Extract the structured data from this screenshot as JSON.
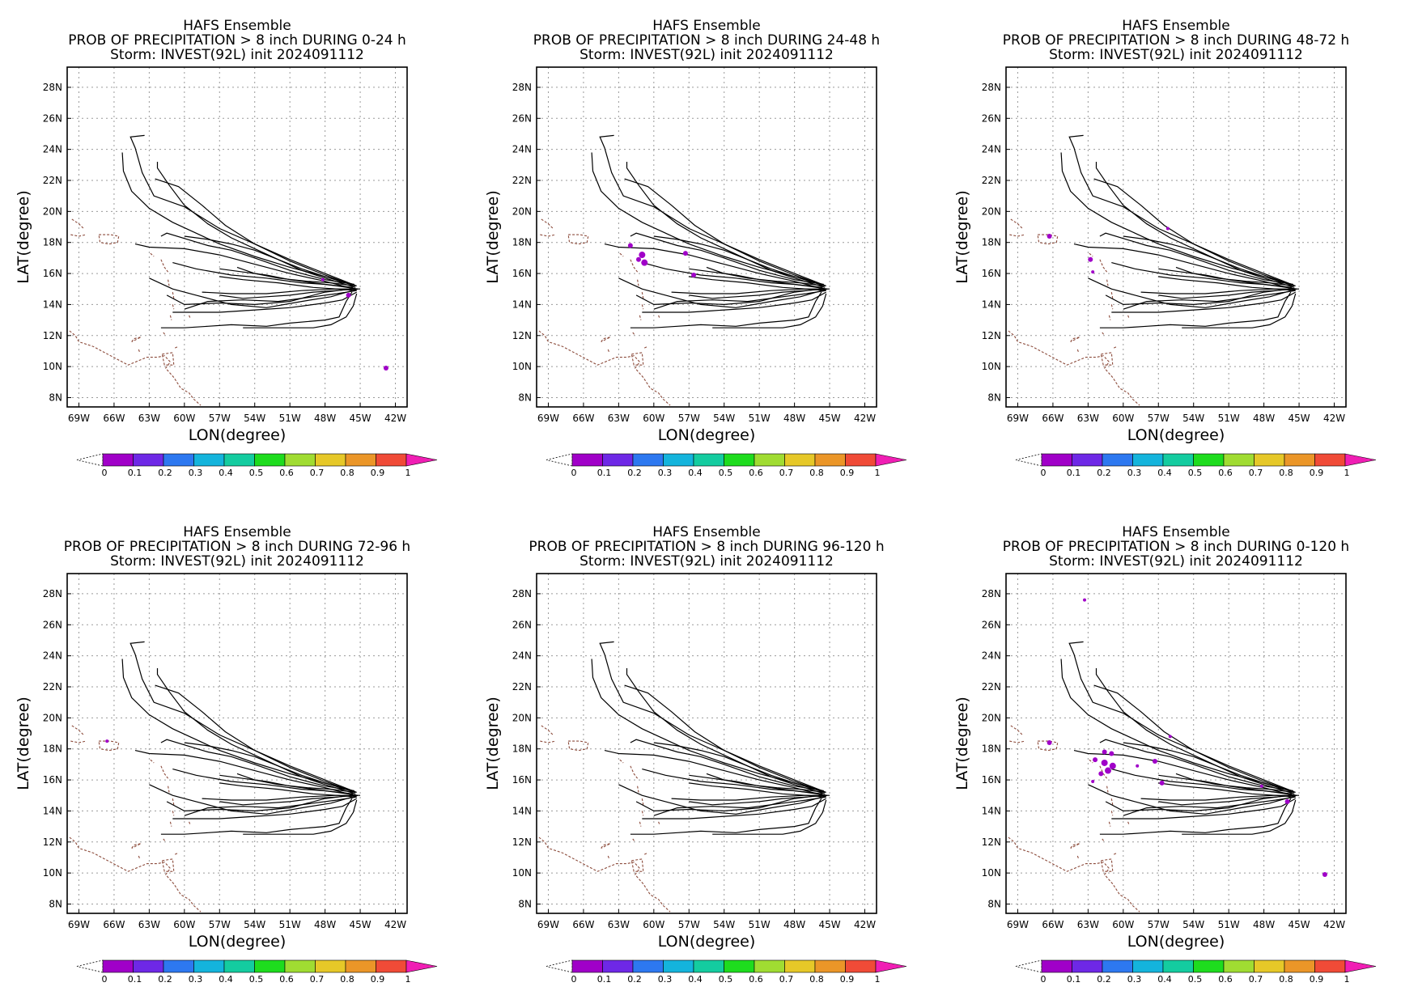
{
  "chart_data": {
    "type": "map",
    "xlabel": "LON(degree)",
    "ylabel": "LAT(degree)",
    "xlim": [
      -70,
      -41
    ],
    "ylim": [
      7.4,
      29.3
    ],
    "x_ticks": [
      -69,
      -66,
      -63,
      -60,
      -57,
      -54,
      -51,
      -48,
      -45,
      -42
    ],
    "x_tick_labels": [
      "69W",
      "66W",
      "63W",
      "60W",
      "57W",
      "54W",
      "51W",
      "48W",
      "45W",
      "42W"
    ],
    "y_ticks": [
      8,
      10,
      12,
      14,
      16,
      18,
      20,
      22,
      24,
      26,
      28
    ],
    "y_tick_labels": [
      "8N",
      "10N",
      "12N",
      "14N",
      "16N",
      "18N",
      "20N",
      "22N",
      "24N",
      "26N",
      "28N"
    ],
    "grid": true,
    "colorbar": {
      "levels": [
        0,
        0.1,
        0.2,
        0.3,
        0.4,
        0.5,
        0.6,
        0.7,
        0.8,
        0.9,
        1
      ],
      "tick_labels": [
        "0",
        "0.1",
        "0.2",
        "0.3",
        "0.4",
        "0.5",
        "0.6",
        "0.7",
        "0.8",
        "0.9",
        "1"
      ],
      "colors": [
        "#a000c8",
        "#6e28e6",
        "#2d78f0",
        "#14b4dc",
        "#14cca0",
        "#1edc1e",
        "#a0dc32",
        "#e6c828",
        "#eb9628",
        "#f04b37"
      ],
      "over_color": "#f01eb4"
    },
    "tracks": [
      [
        [
          -45.4,
          15.2
        ],
        [
          -48,
          15.8
        ],
        [
          -50,
          16.3
        ],
        [
          -52,
          16.9
        ],
        [
          -54,
          17.6
        ],
        [
          -56,
          18.3
        ],
        [
          -58,
          19.2
        ],
        [
          -60,
          20.4
        ],
        [
          -61.3,
          21.7
        ],
        [
          -62.3,
          22.8
        ],
        [
          -62.3,
          23.2
        ]
      ],
      [
        [
          -45.4,
          15.2
        ],
        [
          -48,
          15.9
        ],
        [
          -51,
          16.8
        ],
        [
          -54,
          17.9
        ],
        [
          -56.5,
          19.1
        ],
        [
          -58.5,
          20.4
        ],
        [
          -60.5,
          21.6
        ],
        [
          -62.5,
          22.1
        ]
      ],
      [
        [
          -45.3,
          15.2
        ],
        [
          -48,
          16.0
        ],
        [
          -51,
          16.9
        ],
        [
          -54,
          17.9
        ],
        [
          -57,
          18.9
        ],
        [
          -60,
          20.3
        ],
        [
          -62.6,
          21.0
        ],
        [
          -63.6,
          22.5
        ],
        [
          -64.2,
          24.1
        ],
        [
          -64.6,
          24.8
        ],
        [
          -63.4,
          24.9
        ]
      ],
      [
        [
          -45.4,
          15.1
        ],
        [
          -48,
          15.7
        ],
        [
          -50,
          16.2
        ],
        [
          -52,
          16.9
        ],
        [
          -54,
          17.5
        ],
        [
          -56,
          17.9
        ],
        [
          -58,
          18.2
        ],
        [
          -60,
          18.4
        ]
      ],
      [
        [
          -45.5,
          15.0
        ],
        [
          -48,
          15.5
        ],
        [
          -51,
          16.0
        ],
        [
          -54,
          16.6
        ],
        [
          -57,
          17.2
        ],
        [
          -60,
          17.6
        ],
        [
          -63,
          17.7
        ],
        [
          -64.2,
          17.9
        ]
      ],
      [
        [
          -45.6,
          15.3
        ],
        [
          -48,
          15.8
        ],
        [
          -51,
          16.4
        ],
        [
          -54,
          17.1
        ],
        [
          -57,
          17.9
        ],
        [
          -59,
          18.6
        ],
        [
          -61,
          19.3
        ],
        [
          -63,
          20.2
        ],
        [
          -64.5,
          21.3
        ],
        [
          -65.2,
          22.6
        ],
        [
          -65.3,
          23.8
        ]
      ],
      [
        [
          -45.2,
          15.0
        ],
        [
          -47,
          15.2
        ],
        [
          -49,
          15.4
        ],
        [
          -51,
          15.6
        ],
        [
          -53,
          15.9
        ],
        [
          -55,
          16.1
        ],
        [
          -57,
          16.3
        ]
      ],
      [
        [
          -45.3,
          14.9
        ],
        [
          -47,
          15.0
        ],
        [
          -49,
          15.1
        ],
        [
          -52,
          15.4
        ],
        [
          -55,
          15.6
        ],
        [
          -57,
          15.8
        ]
      ],
      [
        [
          -45.6,
          15.1
        ],
        [
          -48,
          15.3
        ],
        [
          -50,
          15.4
        ],
        [
          -53,
          15.7
        ],
        [
          -56,
          15.9
        ],
        [
          -59,
          16.3
        ],
        [
          -61,
          16.7
        ]
      ],
      [
        [
          -45.5,
          15.3
        ],
        [
          -48,
          15.6
        ],
        [
          -51,
          16.2
        ],
        [
          -54,
          17.0
        ],
        [
          -56,
          17.5
        ],
        [
          -58,
          17.8
        ],
        [
          -61.5,
          18.6
        ],
        [
          -62,
          18.4
        ]
      ],
      [
        [
          -45.0,
          15.0
        ],
        [
          -47,
          15.0
        ],
        [
          -50,
          14.9
        ],
        [
          -53,
          14.7
        ],
        [
          -56,
          14.7
        ],
        [
          -58.5,
          14.8
        ]
      ],
      [
        [
          -45.3,
          14.9
        ],
        [
          -47,
          14.7
        ],
        [
          -49,
          14.5
        ],
        [
          -52,
          14.2
        ],
        [
          -55,
          14.3
        ],
        [
          -58,
          14.2
        ],
        [
          -60,
          13.7
        ]
      ],
      [
        [
          -45.4,
          15.0
        ],
        [
          -47,
          14.9
        ],
        [
          -49,
          14.8
        ],
        [
          -51,
          14.6
        ],
        [
          -53,
          14.5
        ],
        [
          -55,
          14.4
        ],
        [
          -57,
          14.6
        ]
      ],
      [
        [
          -45.8,
          15.0
        ],
        [
          -48,
          14.8
        ],
        [
          -51,
          14.2
        ],
        [
          -54,
          14.0
        ],
        [
          -57,
          14.1
        ],
        [
          -60,
          14.0
        ],
        [
          -61.5,
          14.6
        ]
      ],
      [
        [
          -45.2,
          15.0
        ],
        [
          -47.5,
          14.5
        ],
        [
          -50,
          14.2
        ],
        [
          -53,
          13.8
        ],
        [
          -56,
          14.0
        ],
        [
          -59,
          14.6
        ],
        [
          -61,
          15.0
        ],
        [
          -63,
          15.7
        ]
      ],
      [
        [
          -45.3,
          14.8
        ],
        [
          -46.5,
          14.3
        ],
        [
          -48,
          14.1
        ],
        [
          -51,
          13.8
        ],
        [
          -55,
          13.6
        ],
        [
          -57,
          13.5
        ],
        [
          -61,
          13.5
        ]
      ],
      [
        [
          -45.7,
          14.8
        ],
        [
          -46.2,
          14.2
        ],
        [
          -46.8,
          13.2
        ],
        [
          -48,
          13.0
        ],
        [
          -51,
          12.8
        ],
        [
          -53,
          12.6
        ],
        [
          -56,
          12.7
        ],
        [
          -58,
          12.6
        ],
        [
          -60,
          12.5
        ],
        [
          -62,
          12.5
        ]
      ],
      [
        [
          -45.3,
          14.7
        ],
        [
          -45.6,
          13.9
        ],
        [
          -46.2,
          13.2
        ],
        [
          -47.5,
          12.7
        ],
        [
          -49,
          12.5
        ],
        [
          -52.5,
          12.5
        ],
        [
          -55,
          12.5
        ]
      ],
      [
        [
          -45.4,
          15.2
        ],
        [
          -47.5,
          15.4
        ],
        [
          -49.5,
          15.5
        ],
        [
          -52,
          15.7
        ],
        [
          -54,
          16.0
        ],
        [
          -55.5,
          16.4
        ]
      ]
    ],
    "panels": [
      {
        "title": "HAFS Ensemble",
        "subtitle1": "PROB OF PRECIPITATION > 8 inch DURING  0-24 h",
        "subtitle2": "Storm: INVEST(92L) init 2024091112",
        "blobs": [
          [
            -48.2,
            15.6,
            2
          ],
          [
            -46.0,
            14.6,
            3
          ],
          [
            -42.8,
            9.9,
            3
          ]
        ]
      },
      {
        "title": "HAFS Ensemble",
        "subtitle1": "PROB OF PRECIPITATION > 8 inch DURING 24-48 h",
        "subtitle2": "Storm: INVEST(92L) init 2024091112",
        "blobs": [
          [
            -62.0,
            17.8,
            3
          ],
          [
            -61.0,
            17.2,
            4
          ],
          [
            -60.8,
            16.7,
            4
          ],
          [
            -61.3,
            16.9,
            3
          ],
          [
            -57.3,
            17.3,
            3
          ],
          [
            -56.6,
            15.9,
            3
          ]
        ]
      },
      {
        "title": "HAFS Ensemble",
        "subtitle1": "PROB OF PRECIPITATION > 8 inch DURING 48-72 h",
        "subtitle2": "Storm: INVEST(92L) init 2024091112",
        "blobs": [
          [
            -66.3,
            18.4,
            3
          ],
          [
            -62.8,
            16.9,
            3
          ],
          [
            -56.2,
            18.9,
            2
          ],
          [
            -62.6,
            16.1,
            2
          ]
        ]
      },
      {
        "title": "HAFS Ensemble",
        "subtitle1": "PROB OF PRECIPITATION > 8 inch DURING 72-96 h",
        "subtitle2": "Storm: INVEST(92L) init 2024091112",
        "blobs": [
          [
            -66.6,
            18.5,
            2
          ]
        ]
      },
      {
        "title": "HAFS Ensemble",
        "subtitle1": "PROB OF PRECIPITATION > 8 inch DURING 96-120 h",
        "subtitle2": "Storm: INVEST(92L) init 2024091112",
        "blobs": []
      },
      {
        "title": "HAFS Ensemble",
        "subtitle1": "PROB OF PRECIPITATION > 8 inch DURING 0-120 h",
        "subtitle2": "Storm: INVEST(92L) init 2024091112",
        "blobs": [
          [
            -66.3,
            18.4,
            3
          ],
          [
            -63.3,
            27.6,
            2
          ],
          [
            -61.6,
            17.8,
            3
          ],
          [
            -61.0,
            17.7,
            3
          ],
          [
            -62.4,
            17.3,
            3
          ],
          [
            -61.6,
            17.1,
            4
          ],
          [
            -60.9,
            16.9,
            4
          ],
          [
            -61.3,
            16.6,
            4
          ],
          [
            -61.9,
            16.4,
            3
          ],
          [
            -62.6,
            15.9,
            2
          ],
          [
            -57.3,
            17.2,
            3
          ],
          [
            -56.7,
            15.8,
            3
          ],
          [
            -56.0,
            18.8,
            2
          ],
          [
            -48.2,
            15.6,
            2
          ],
          [
            -46.0,
            14.6,
            3
          ],
          [
            -42.8,
            9.9,
            3
          ],
          [
            -58.8,
            16.9,
            2
          ]
        ]
      }
    ],
    "coastlines": [
      [
        [
          -69.6,
          19.5
        ],
        [
          -69.0,
          19.2
        ],
        [
          -68.6,
          18.9
        ]
      ],
      [
        [
          -69.7,
          18.5
        ],
        [
          -69.0,
          18.4
        ],
        [
          -68.4,
          18.5
        ]
      ],
      [
        [
          -67.3,
          18.5
        ],
        [
          -66.3,
          18.5
        ],
        [
          -65.6,
          18.4
        ],
        [
          -65.7,
          18.0
        ],
        [
          -66.4,
          17.9
        ],
        [
          -67.2,
          18.0
        ],
        [
          -67.3,
          18.5
        ]
      ],
      [
        [
          -62.9,
          17.3
        ],
        [
          -62.6,
          17.1
        ]
      ],
      [
        [
          -62.0,
          16.9
        ],
        [
          -61.7,
          16.4
        ],
        [
          -61.4,
          16.1
        ]
      ],
      [
        [
          -61.4,
          15.6
        ],
        [
          -61.3,
          15.2
        ]
      ],
      [
        [
          -61.0,
          14.8
        ],
        [
          -60.9,
          14.4
        ]
      ],
      [
        [
          -61.0,
          14.0
        ],
        [
          -60.9,
          13.7
        ]
      ],
      [
        [
          -61.2,
          13.3
        ],
        [
          -61.1,
          13.0
        ]
      ],
      [
        [
          -59.6,
          13.3
        ],
        [
          -59.5,
          13.1
        ]
      ],
      [
        [
          -61.8,
          12.2
        ],
        [
          -61.6,
          12.0
        ]
      ],
      [
        [
          -69.8,
          12.3
        ],
        [
          -69.3,
          12.0
        ],
        [
          -69.0,
          11.6
        ],
        [
          -67.8,
          11.3
        ],
        [
          -66.3,
          10.7
        ],
        [
          -64.8,
          10.1
        ],
        [
          -63.2,
          10.6
        ],
        [
          -62.3,
          10.6
        ],
        [
          -61.7,
          10.7
        ],
        [
          -61.2,
          10.3
        ],
        [
          -61.6,
          9.9
        ],
        [
          -60.9,
          9.3
        ],
        [
          -60.3,
          8.6
        ],
        [
          -59.6,
          8.3
        ],
        [
          -59.2,
          7.9
        ],
        [
          -58.6,
          7.5
        ]
      ],
      [
        [
          -61.9,
          10.8
        ],
        [
          -61.0,
          10.9
        ],
        [
          -60.9,
          10.1
        ],
        [
          -61.7,
          10.1
        ],
        [
          -61.9,
          10.8
        ]
      ],
      [
        [
          -60.8,
          11.2
        ],
        [
          -60.5,
          11.3
        ]
      ],
      [
        [
          -63.9,
          11.1
        ],
        [
          -63.8,
          10.9
        ]
      ],
      [
        [
          -64.5,
          11.6
        ],
        [
          -64.3,
          11.8
        ],
        [
          -63.7,
          11.9
        ],
        [
          -64.5,
          11.6
        ]
      ]
    ]
  }
}
